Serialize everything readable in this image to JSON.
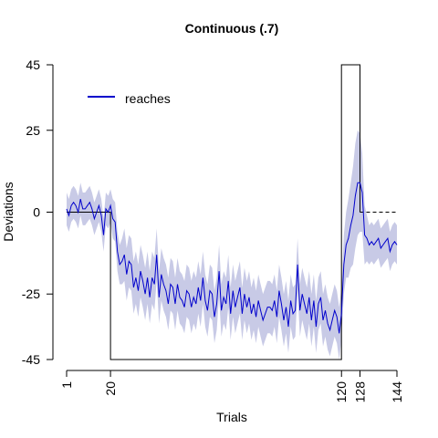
{
  "chart_data": {
    "type": "line",
    "title": "Continuous (.7)",
    "xlabel": "Trials",
    "ylabel": "Deviations",
    "xlim": [
      1,
      144
    ],
    "ylim": [
      -45,
      45
    ],
    "x_ticks": [
      1,
      20,
      120,
      128,
      144
    ],
    "x_tick_labels": [
      "1",
      "20",
      "120",
      "128",
      "144"
    ],
    "y_ticks": [
      45,
      25,
      0,
      -25,
      -45
    ],
    "y_tick_labels": [
      "45",
      "25",
      "0",
      "-25",
      "-45"
    ],
    "legend": {
      "position": "top-left",
      "entries": [
        {
          "label": "reaches",
          "color": "#0000cc"
        }
      ]
    },
    "colors": {
      "reaches": "#0000cc",
      "band": "#c8cae6",
      "schedule": "#000000",
      "dashed": "#000000"
    },
    "schedule": {
      "segments": [
        {
          "x_start": 1,
          "x_end": 20,
          "value": 0
        },
        {
          "x_start": 20,
          "x_end": 120,
          "value": -45
        },
        {
          "x_start": 120,
          "x_end": 128,
          "value": 45
        }
      ],
      "dashed_segment": {
        "x_start": 128,
        "x_end": 144,
        "value": 0
      }
    },
    "series": [
      {
        "name": "reaches",
        "x": [
          1,
          2,
          3,
          4,
          5,
          6,
          7,
          8,
          9,
          10,
          11,
          12,
          13,
          14,
          15,
          16,
          17,
          18,
          19,
          20,
          21,
          22,
          23,
          24,
          25,
          26,
          27,
          28,
          29,
          30,
          31,
          32,
          33,
          34,
          35,
          36,
          37,
          38,
          39,
          40,
          41,
          42,
          43,
          44,
          45,
          46,
          47,
          48,
          49,
          50,
          51,
          52,
          53,
          54,
          55,
          56,
          57,
          58,
          59,
          60,
          61,
          62,
          63,
          64,
          65,
          66,
          67,
          68,
          69,
          70,
          71,
          72,
          73,
          74,
          75,
          76,
          77,
          78,
          79,
          80,
          81,
          82,
          83,
          84,
          85,
          86,
          87,
          88,
          89,
          90,
          91,
          92,
          93,
          94,
          95,
          96,
          97,
          98,
          99,
          100,
          101,
          102,
          103,
          104,
          105,
          106,
          107,
          108,
          109,
          110,
          111,
          112,
          113,
          114,
          115,
          116,
          117,
          118,
          119,
          120,
          121,
          122,
          123,
          124,
          125,
          126,
          127,
          128,
          129,
          130,
          131,
          132,
          133,
          134,
          135,
          136,
          137,
          138,
          139,
          140,
          141,
          142,
          143,
          144
        ],
        "values": [
          1,
          -1,
          2,
          3,
          2,
          0,
          4,
          1,
          1,
          2,
          3,
          1,
          -2,
          0,
          2,
          -1,
          -7,
          1,
          0,
          2,
          -2,
          -3,
          -12,
          -16,
          -15,
          -13,
          -19,
          -15,
          -16,
          -23,
          -20,
          -24,
          -18,
          -21,
          -25,
          -20,
          -26,
          -20,
          -22,
          -13,
          -26,
          -19,
          -22,
          -24,
          -28,
          -22,
          -23,
          -28,
          -22,
          -26,
          -27,
          -29,
          -24,
          -25,
          -29,
          -26,
          -28,
          -23,
          -27,
          -20,
          -27,
          -30,
          -24,
          -25,
          -32,
          -28,
          -18,
          -30,
          -26,
          -28,
          -21,
          -31,
          -24,
          -29,
          -26,
          -23,
          -31,
          -25,
          -29,
          -26,
          -31,
          -28,
          -32,
          -27,
          -30,
          -33,
          -31,
          -29,
          -29,
          -30,
          -27,
          -32,
          -24,
          -28,
          -33,
          -29,
          -35,
          -27,
          -31,
          -30,
          -16,
          -30,
          -25,
          -28,
          -31,
          -26,
          -33,
          -27,
          -35,
          -28,
          -26,
          -33,
          -30,
          -34,
          -36,
          -33,
          -30,
          -32,
          -37,
          -31,
          -16,
          -10,
          -8,
          -4,
          -1,
          5,
          9,
          9,
          6,
          -7,
          -8,
          -10,
          -9,
          -10,
          -9,
          -8,
          -11,
          -10,
          -9,
          -8,
          -12,
          -10,
          -9,
          -10
        ],
        "ci_half_width": [
          5,
          5,
          5,
          5,
          5,
          5,
          5,
          5,
          5,
          5,
          5,
          5,
          5,
          5,
          5,
          5,
          5,
          5,
          5,
          5,
          6,
          6,
          6,
          6,
          7,
          8,
          8,
          8,
          8,
          8,
          8,
          8,
          8,
          8,
          8,
          8,
          8,
          8,
          8,
          8,
          8,
          8,
          8,
          8,
          8,
          8,
          8,
          8,
          8,
          8,
          8,
          8,
          8,
          8,
          8,
          8,
          8,
          8,
          8,
          8,
          8,
          8,
          8,
          8,
          8,
          8,
          8,
          8,
          8,
          8,
          8,
          8,
          8,
          8,
          8,
          8,
          8,
          8,
          8,
          8,
          8,
          8,
          8,
          8,
          8,
          8,
          8,
          8,
          8,
          8,
          8,
          8,
          8,
          8,
          8,
          8,
          8,
          8,
          8,
          8,
          8,
          8,
          8,
          8,
          8,
          8,
          8,
          8,
          8,
          8,
          8,
          8,
          8,
          8,
          8,
          8,
          8,
          8,
          8,
          8,
          9,
          10,
          12,
          13,
          15,
          16,
          16,
          15,
          12,
          9,
          7,
          6,
          6,
          6,
          6,
          6,
          6,
          6,
          6,
          6,
          6,
          6,
          6,
          6
        ]
      }
    ]
  }
}
